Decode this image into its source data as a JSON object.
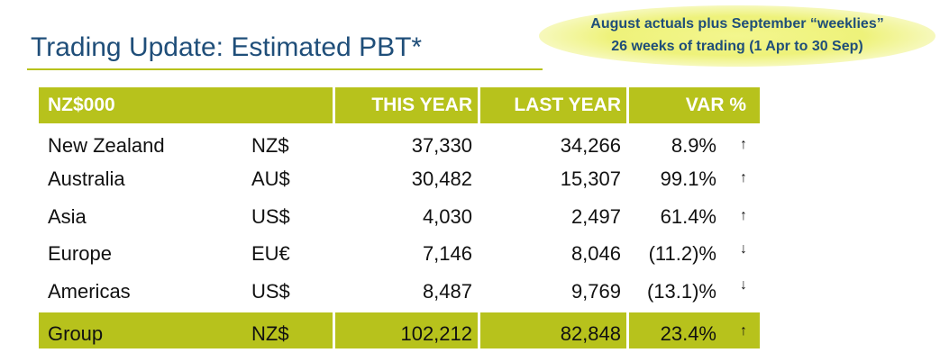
{
  "title": "Trading Update: Estimated PBT*",
  "callout": {
    "line1": "August actuals plus September “weeklies”",
    "line2": "26 weeks of trading (1 Apr to 30 Sep)"
  },
  "table": {
    "headers": {
      "region": "NZ$000",
      "this_year": "THIS YEAR",
      "last_year": "LAST YEAR",
      "var": "VAR %"
    },
    "rows": [
      {
        "region": "New Zealand",
        "currency": "NZ$",
        "this_year": "37,330",
        "last_year": "34,266",
        "var": "8.9%",
        "trend": "up",
        "arrow": "↑"
      },
      {
        "region": "Australia",
        "currency": "AU$",
        "this_year": "30,482",
        "last_year": "15,307",
        "var": "99.1%",
        "trend": "up",
        "arrow": "↑"
      },
      {
        "region": "Asia",
        "currency": "US$",
        "this_year": "4,030",
        "last_year": "2,497",
        "var": "61.4%",
        "trend": "up",
        "arrow": "↑"
      },
      {
        "region": "Europe",
        "currency": "EU€",
        "this_year": "7,146",
        "last_year": "8,046",
        "var": "(11.2)%",
        "trend": "down",
        "arrow": "↓"
      },
      {
        "region": "Americas",
        "currency": "US$",
        "this_year": "8,487",
        "last_year": "9,769",
        "var": "(13.1)%",
        "trend": "down",
        "arrow": "↓"
      }
    ],
    "total": {
      "region": "Group",
      "currency": "NZ$",
      "this_year": "102,212",
      "last_year": "82,848",
      "var": "23.4%",
      "trend": "up",
      "arrow": "↑"
    }
  },
  "colors": {
    "accent": "#b7c21c",
    "title": "#1f4e79",
    "callout_highlight": "#eef27a"
  }
}
